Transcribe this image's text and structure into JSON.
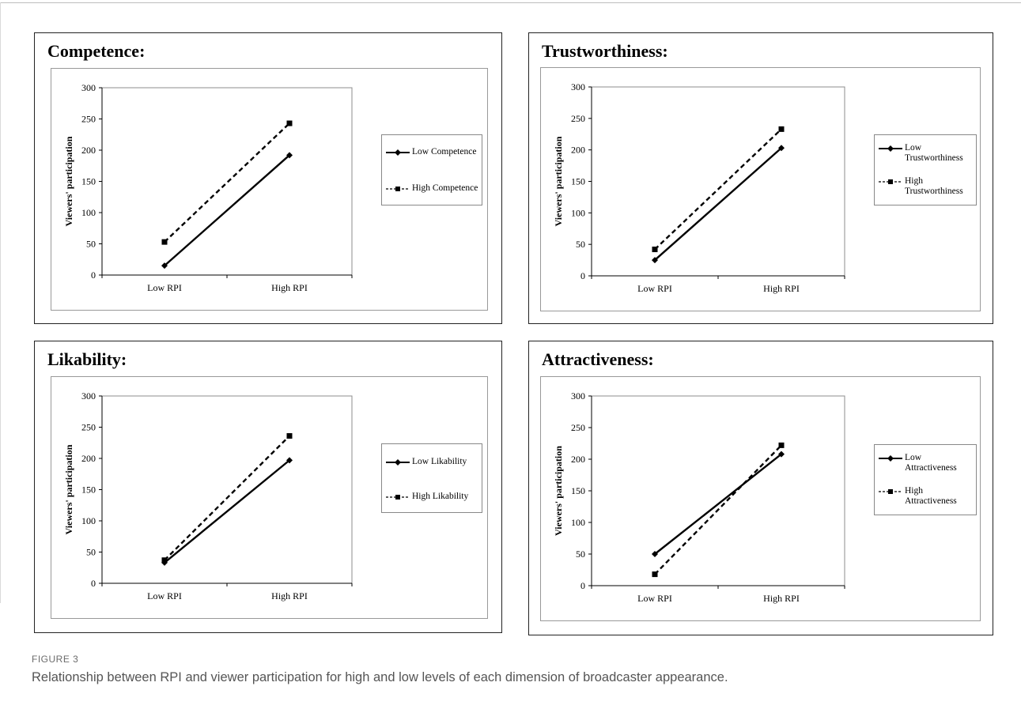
{
  "figure": {
    "label": "FIGURE 3",
    "caption": "Relationship between RPI and viewer participation for high and low levels of each dimension of broadcaster appearance."
  },
  "chart_data": [
    {
      "type": "line",
      "title": "Competence:",
      "ylabel": "Viewers' participation",
      "categories": [
        "Low RPI",
        "High RPI"
      ],
      "ylim": [
        0,
        300
      ],
      "yticks": [
        0,
        50,
        100,
        150,
        200,
        250,
        300
      ],
      "legend_position": "right",
      "series": [
        {
          "name": "Low Competence",
          "values": [
            15,
            192
          ],
          "style": "solid",
          "marker": "diamond"
        },
        {
          "name": "High Competence",
          "values": [
            53,
            243
          ],
          "style": "dashed",
          "marker": "square"
        }
      ]
    },
    {
      "type": "line",
      "title": "Trustworthiness:",
      "ylabel": "Viewers' participation",
      "categories": [
        "Low RPI",
        "High RPI"
      ],
      "ylim": [
        0,
        300
      ],
      "yticks": [
        0,
        50,
        100,
        150,
        200,
        250,
        300
      ],
      "legend_position": "right",
      "series": [
        {
          "name": "Low Trustworthiness",
          "values": [
            25,
            203
          ],
          "style": "solid",
          "marker": "diamond"
        },
        {
          "name": "High Trustworthiness",
          "values": [
            42,
            233
          ],
          "style": "dashed",
          "marker": "square"
        }
      ]
    },
    {
      "type": "line",
      "title": "Likability:",
      "ylabel": "Viewers' participation",
      "categories": [
        "Low RPI",
        "High RPI"
      ],
      "ylim": [
        0,
        300
      ],
      "yticks": [
        0,
        50,
        100,
        150,
        200,
        250,
        300
      ],
      "legend_position": "right",
      "series": [
        {
          "name": "Low Likability",
          "values": [
            33,
            197
          ],
          "style": "solid",
          "marker": "diamond"
        },
        {
          "name": "High Likability",
          "values": [
            37,
            236
          ],
          "style": "dashed",
          "marker": "square"
        }
      ]
    },
    {
      "type": "line",
      "title": "Attractiveness:",
      "ylabel": "Viewers' participation",
      "categories": [
        "Low RPI",
        "High RPI"
      ],
      "ylim": [
        0,
        300
      ],
      "yticks": [
        0,
        50,
        100,
        150,
        200,
        250,
        300
      ],
      "legend_position": "right",
      "series": [
        {
          "name": "Low Attractiveness",
          "values": [
            50,
            208
          ],
          "style": "solid",
          "marker": "diamond"
        },
        {
          "name": "High Attractiveness",
          "values": [
            18,
            222
          ],
          "style": "dashed",
          "marker": "square"
        }
      ]
    }
  ]
}
